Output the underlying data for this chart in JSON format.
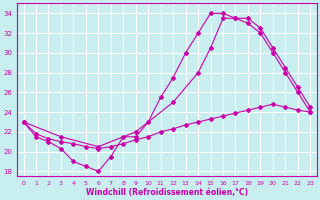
{
  "xlabel": "Windchill (Refroidissement éolien,°C)",
  "bg_color": "#c8eef0",
  "grid_color": "#ffffff",
  "line_color": "#cc00aa",
  "xlim": [
    -0.5,
    23.5
  ],
  "ylim": [
    17.5,
    35.0
  ],
  "xticks": [
    0,
    1,
    2,
    3,
    4,
    5,
    6,
    7,
    8,
    9,
    10,
    11,
    12,
    13,
    14,
    15,
    16,
    17,
    18,
    19,
    20,
    21,
    22,
    23
  ],
  "yticks": [
    18,
    20,
    22,
    24,
    26,
    28,
    30,
    32,
    34
  ],
  "line1_x": [
    0,
    1,
    2,
    3,
    4,
    5,
    6,
    7,
    8,
    9,
    10,
    11,
    12,
    13,
    14,
    15,
    16,
    17,
    18,
    19,
    20,
    21,
    22,
    23
  ],
  "line1_y": [
    23.0,
    21.5,
    21.0,
    20.3,
    19.0,
    18.5,
    18.0,
    19.5,
    21.5,
    21.5,
    23.0,
    25.5,
    27.5,
    30.0,
    32.0,
    34.0,
    34.0,
    33.5,
    33.5,
    32.5,
    30.5,
    28.5,
    26.5,
    24.5
  ],
  "line2_x": [
    0,
    3,
    6,
    9,
    12,
    14,
    15,
    16,
    17,
    18,
    19,
    20,
    21,
    22,
    23
  ],
  "line2_y": [
    23.0,
    21.5,
    20.5,
    22.0,
    25.0,
    28.0,
    30.5,
    33.5,
    33.5,
    33.0,
    32.0,
    30.0,
    28.0,
    26.0,
    24.0
  ],
  "line3_x": [
    0,
    1,
    2,
    3,
    4,
    5,
    6,
    7,
    8,
    9,
    10,
    11,
    12,
    13,
    14,
    15,
    16,
    17,
    18,
    19,
    20,
    21,
    22,
    23
  ],
  "line3_y": [
    23.0,
    21.8,
    21.3,
    21.0,
    20.8,
    20.5,
    20.3,
    20.5,
    20.8,
    21.2,
    21.5,
    22.0,
    22.3,
    22.7,
    23.0,
    23.3,
    23.6,
    23.9,
    24.2,
    24.5,
    24.8,
    24.5,
    24.2,
    24.0
  ]
}
